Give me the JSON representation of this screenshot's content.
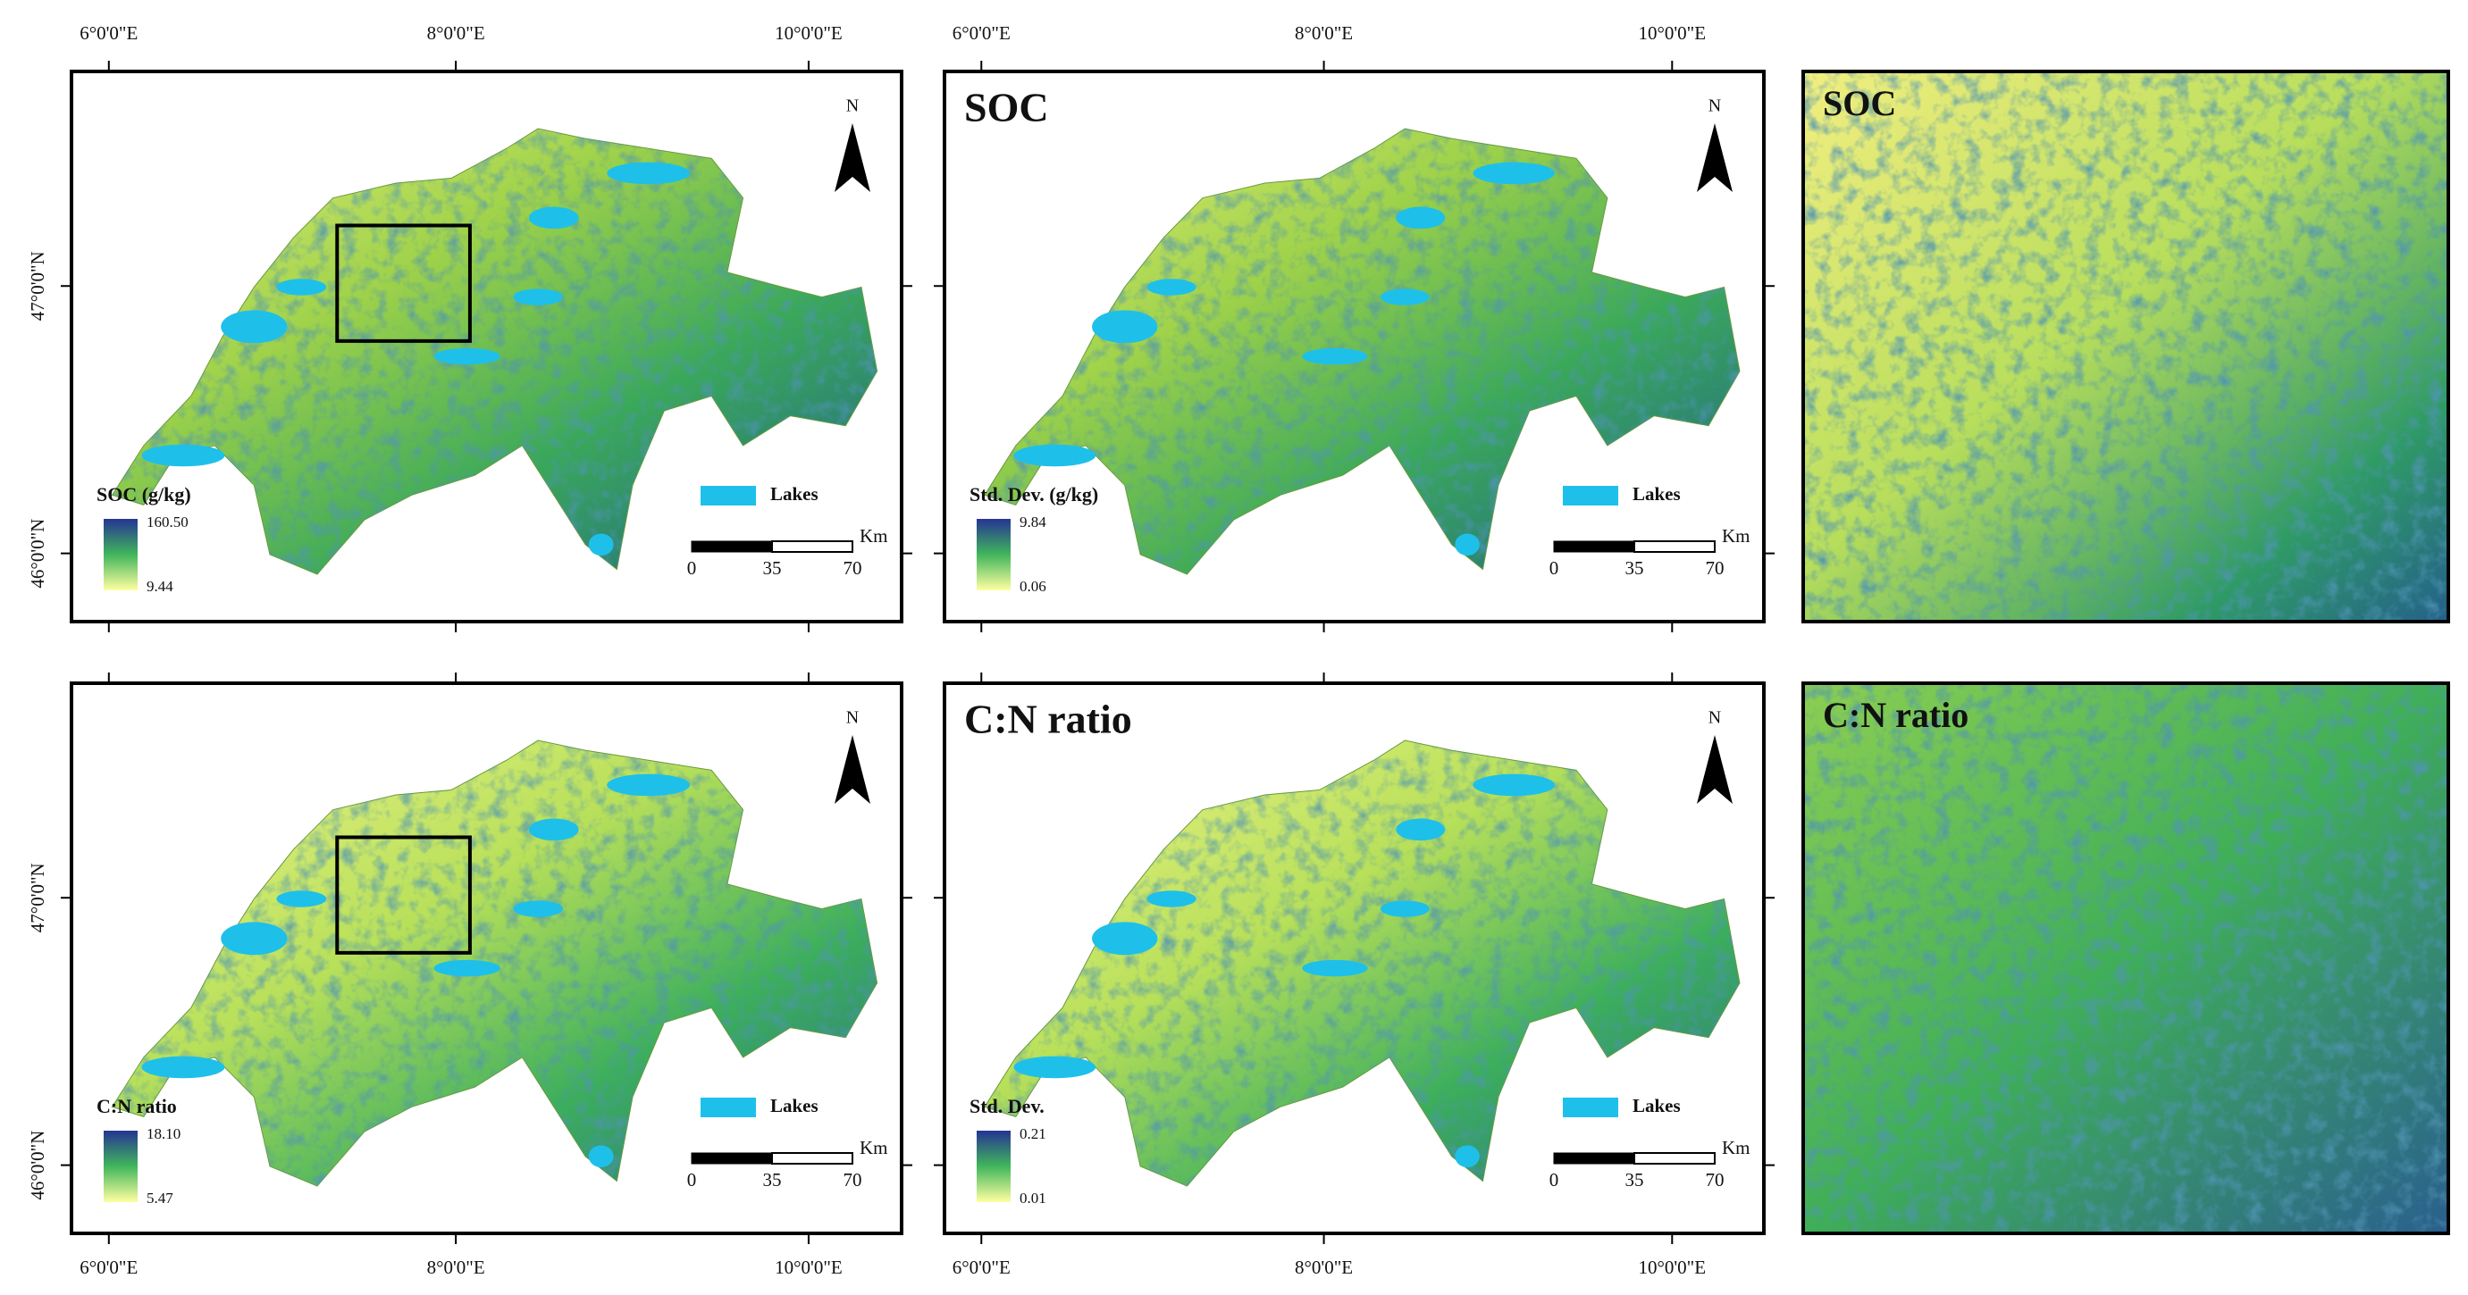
{
  "longitude_labels": [
    "6°0'0\"E",
    "8°0'0\"E",
    "10°0'0\"E"
  ],
  "latitude_labels": [
    "47°0'0\"N",
    "46°0'0\"N"
  ],
  "north": "N",
  "lakes": "Lakes",
  "scale_labels": [
    "0",
    "35",
    "70"
  ],
  "scale_unit": "Km",
  "rows": [
    {
      "map": {
        "legend_title": "SOC (g/kg)",
        "legend_max": "160.50",
        "legend_min": "9.44"
      },
      "uncertainty": {
        "title": "SOC",
        "legend_title": "Std. Dev. (g/kg)",
        "legend_max": "9.84",
        "legend_min": "0.06"
      },
      "zoom": {
        "title": "SOC"
      }
    },
    {
      "map": {
        "legend_title": "C:N ratio",
        "legend_max": "18.10",
        "legend_min": "5.47"
      },
      "uncertainty": {
        "title": "C:N ratio",
        "legend_title": "Std. Dev.",
        "legend_max": "0.21",
        "legend_min": "0.01"
      },
      "zoom": {
        "title": "C:N ratio"
      }
    }
  ]
}
